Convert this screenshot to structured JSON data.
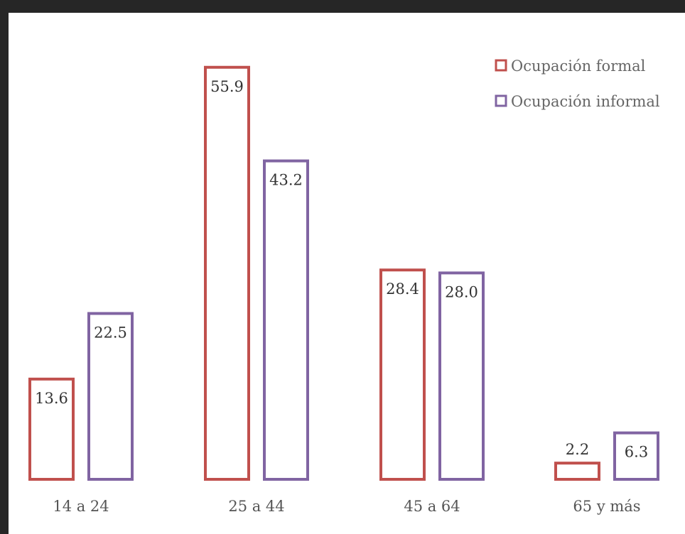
{
  "chart_data": {
    "type": "bar",
    "title": "",
    "xlabel": "",
    "ylabel": "",
    "categories": [
      "14 a 24",
      "25 a 44",
      "45 a 64",
      "65 y más"
    ],
    "series": [
      {
        "name": "Ocupación formal",
        "values": [
          13.6,
          55.9,
          28.4,
          2.2
        ],
        "color": "#c0504d",
        "labels": [
          "13.6",
          "55.9",
          "28.4",
          "2.2"
        ]
      },
      {
        "name": "Ocupación informal",
        "values": [
          22.5,
          43.2,
          28.0,
          6.3
        ],
        "color": "#8064a2",
        "labels": [
          "22.5",
          "43.2",
          "28.0",
          "6.3"
        ]
      }
    ],
    "ylim": [
      0,
      60
    ],
    "grid": false,
    "legend": "top-right",
    "bar_style": "outlined"
  }
}
